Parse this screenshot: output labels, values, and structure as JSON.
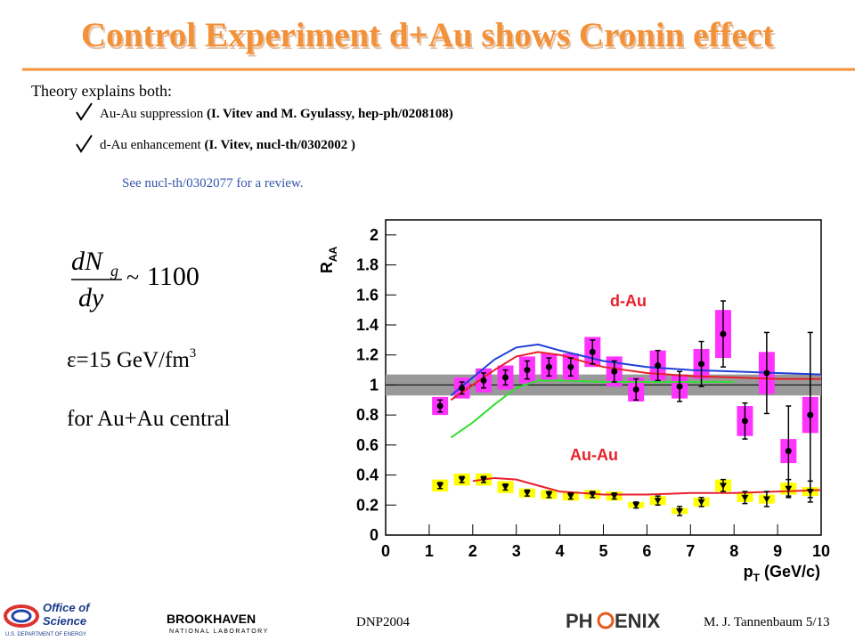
{
  "slide": {
    "title": "Control Experiment d+Au shows Cronin effect",
    "intro": "Theory explains both:",
    "bullets": [
      {
        "text": "Au-Au suppression",
        "reference": "(I. Vitev and M. Gyulassy, hep-ph/0208108)"
      },
      {
        "text": "d-Au enhancement",
        "reference": "(I. Vitev, nucl-th/0302002 )"
      }
    ],
    "review_note": "See nucl-th/0302077 for a review.",
    "formula": {
      "numerator": "dN",
      "subscript": "g",
      "denominator": "dy",
      "relation": "~",
      "value": "1100"
    },
    "energy_density": {
      "text": "ε=15 GeV/fm",
      "superscript": "3"
    },
    "condition": "for Au+Au central",
    "footer": {
      "conference": "DNP2004",
      "author": "M. J. Tannenbaum  5/13",
      "logo_doe": {
        "line1": "Office of",
        "line2": "Science",
        "line3": "U.S. DEPARTMENT OF ENERGY"
      },
      "logo_bnl": {
        "line1": "BROOKHAVEN",
        "line2": "NATIONAL LABORATORY"
      },
      "logo_phenix": {
        "left": "PH",
        "right": "ENIX"
      }
    }
  },
  "chart_data": {
    "type": "scatter",
    "y_label": "R",
    "y_label_sub": "AA",
    "x_label": "p",
    "x_label_sub": "T",
    "x_label_unit": " (GeV/c)",
    "xlim": [
      0,
      10
    ],
    "xticks": [
      0,
      1,
      2,
      3,
      4,
      5,
      6,
      7,
      8,
      9,
      10
    ],
    "ylim": [
      0,
      2.1
    ],
    "yticks": [
      0,
      0.2,
      0.4,
      0.6,
      0.8,
      1,
      1.2,
      1.4,
      1.6,
      1.8,
      2
    ],
    "reference_line": 1,
    "reference_band": [
      0.93,
      1.07
    ],
    "band_color": "#999999",
    "series": [
      {
        "name": "d-Au",
        "color": "#000000",
        "label_color": "#e8202a",
        "sys_color": "#ff33ff",
        "marker": "circle",
        "x": [
          1.25,
          1.75,
          2.25,
          2.75,
          3.25,
          3.75,
          4.25,
          4.75,
          5.25,
          5.75,
          6.25,
          6.75,
          7.25,
          7.75,
          8.25,
          8.75,
          9.25,
          9.75
        ],
        "values": [
          0.86,
          0.98,
          1.03,
          1.05,
          1.1,
          1.12,
          1.12,
          1.22,
          1.09,
          0.97,
          1.13,
          0.99,
          1.14,
          1.34,
          0.76,
          1.08,
          0.56,
          0.8
        ],
        "errors": [
          0.04,
          0.04,
          0.05,
          0.05,
          0.06,
          0.06,
          0.06,
          0.08,
          0.07,
          0.07,
          0.1,
          0.1,
          0.15,
          0.22,
          0.12,
          0.27,
          0.3,
          0.55
        ],
        "sys_errors": [
          0.06,
          0.07,
          0.08,
          0.08,
          0.09,
          0.09,
          0.09,
          0.1,
          0.1,
          0.08,
          0.1,
          0.08,
          0.1,
          0.16,
          0.1,
          0.14,
          0.08,
          0.12
        ]
      },
      {
        "name": "Au-Au",
        "color": "#000000",
        "label_color": "#e8202a",
        "sys_color": "#ffff00",
        "marker": "triangle",
        "x": [
          1.25,
          1.75,
          2.25,
          2.75,
          3.25,
          3.75,
          4.25,
          4.75,
          5.25,
          5.75,
          6.25,
          6.75,
          7.25,
          7.75,
          8.25,
          8.75,
          9.25,
          9.75
        ],
        "values": [
          0.33,
          0.37,
          0.37,
          0.32,
          0.28,
          0.27,
          0.26,
          0.27,
          0.26,
          0.2,
          0.23,
          0.16,
          0.22,
          0.33,
          0.25,
          0.24,
          0.31,
          0.29
        ],
        "errors": [
          0.02,
          0.02,
          0.02,
          0.02,
          0.02,
          0.02,
          0.02,
          0.02,
          0.02,
          0.02,
          0.03,
          0.03,
          0.03,
          0.04,
          0.04,
          0.05,
          0.06,
          0.07
        ],
        "sys_errors": [
          0.04,
          0.04,
          0.04,
          0.04,
          0.03,
          0.03,
          0.03,
          0.03,
          0.03,
          0.02,
          0.03,
          0.02,
          0.03,
          0.04,
          0.03,
          0.03,
          0.04,
          0.03
        ]
      }
    ],
    "curves": [
      {
        "color": "#1f3fd8",
        "x": [
          1.5,
          2,
          2.5,
          3,
          3.5,
          4,
          5,
          6,
          7,
          8,
          9,
          10
        ],
        "values": [
          0.93,
          1.05,
          1.17,
          1.25,
          1.27,
          1.23,
          1.16,
          1.12,
          1.1,
          1.09,
          1.08,
          1.07
        ]
      },
      {
        "color": "#e8202a",
        "x": [
          1.5,
          2,
          2.5,
          3,
          3.5,
          4,
          5,
          6,
          7,
          8,
          9,
          10
        ],
        "values": [
          0.9,
          1.0,
          1.1,
          1.19,
          1.22,
          1.2,
          1.12,
          1.08,
          1.06,
          1.05,
          1.04,
          1.04
        ]
      },
      {
        "color": "#33dd33",
        "x": [
          1.5,
          2,
          2.5,
          3,
          3.5,
          4,
          5,
          6,
          7,
          8
        ],
        "values": [
          0.65,
          0.75,
          0.87,
          0.98,
          1.03,
          1.03,
          1.02,
          1.02,
          1.02,
          1.02
        ]
      },
      {
        "color": "#e8202a",
        "x": [
          2,
          2.5,
          3,
          3.5,
          4,
          4.5,
          5,
          6,
          7,
          8,
          9,
          10
        ],
        "values": [
          0.36,
          0.38,
          0.37,
          0.33,
          0.29,
          0.28,
          0.27,
          0.27,
          0.28,
          0.28,
          0.29,
          0.3
        ]
      }
    ]
  }
}
